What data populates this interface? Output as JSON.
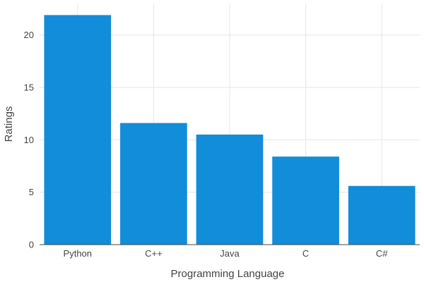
{
  "chart_data": {
    "type": "bar",
    "categories": [
      "Python",
      "C++",
      "Java",
      "C",
      "C#"
    ],
    "values": [
      21.9,
      11.6,
      10.5,
      8.4,
      5.6
    ],
    "xlabel": "Programming Language",
    "ylabel": "Ratings",
    "ylim": [
      0,
      23
    ],
    "yticks": [
      0,
      5,
      10,
      15,
      20
    ],
    "grid": true,
    "colors": {
      "bar": "#118dd9",
      "grid": "#e6e6e6",
      "axis": "#444444"
    }
  }
}
